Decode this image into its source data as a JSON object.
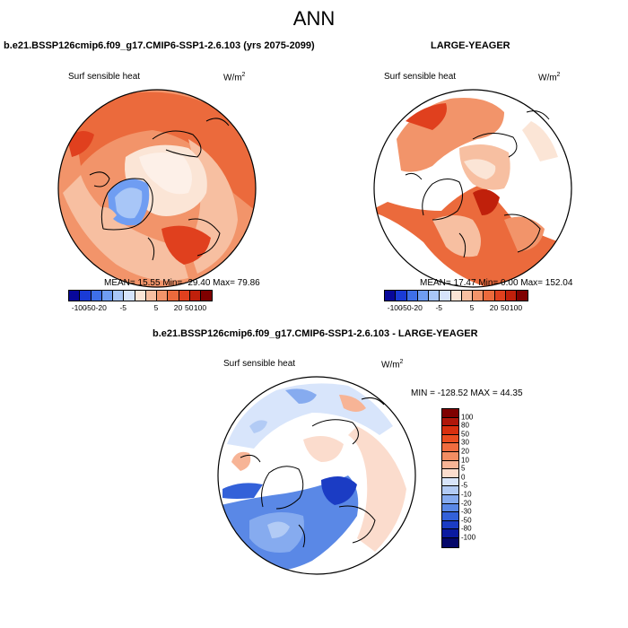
{
  "title": "ANN",
  "panel_left": {
    "title": "b.e21.BSSP126cmip6.f09_g17.CMIP6-SSP1-2.6.103 (yrs 2075-2099)",
    "variable": "Surf sensible heat",
    "units": "W/m",
    "units_exp": "2",
    "stats": "MEAN=  15.55  Min= -29.40  Max=  79.86"
  },
  "panel_right": {
    "title": "LARGE-YEAGER",
    "variable": "Surf sensible heat",
    "units": "W/m",
    "units_exp": "2",
    "stats": "MEAN=  17.47  Min=   0.00  Max= 152.04"
  },
  "panel_diff": {
    "title": "b.e21.BSSP126cmip6.f09_g17.CMIP6-SSP1-2.6.103 - LARGE-YEAGER",
    "variable": "Surf sensible heat",
    "units": "W/m",
    "units_exp": "2",
    "stats": "MIN = -128.52  MAX =  44.35"
  },
  "colorbar_top": {
    "labels": [
      "-100",
      "-50",
      "-20",
      "-5",
      "5",
      "20",
      "50",
      "100"
    ],
    "colors": [
      "#08089a",
      "#1a3bd6",
      "#3e6fe8",
      "#6f9df2",
      "#a8c6f7",
      "#d6e4fb",
      "#fbe5d6",
      "#f7bfa1",
      "#f2946a",
      "#eb6a3c",
      "#e0401e",
      "#c0200b",
      "#7f0000"
    ]
  },
  "colorbar_diff": {
    "labels": [
      "100",
      "80",
      "50",
      "30",
      "20",
      "10",
      "5",
      "0",
      "-5",
      "-10",
      "-20",
      "-30",
      "-50",
      "-80",
      "-100"
    ],
    "colors": [
      "#7f0000",
      "#b0170a",
      "#d8300f",
      "#ea4d20",
      "#f06c3f",
      "#f38d62",
      "#f7b496",
      "#fbdccd",
      "#d8e5fb",
      "#b2cbf5",
      "#86abef",
      "#5a88e6",
      "#3361d9",
      "#1b3cc4",
      "#0b1aa0",
      "#05086a"
    ]
  }
}
